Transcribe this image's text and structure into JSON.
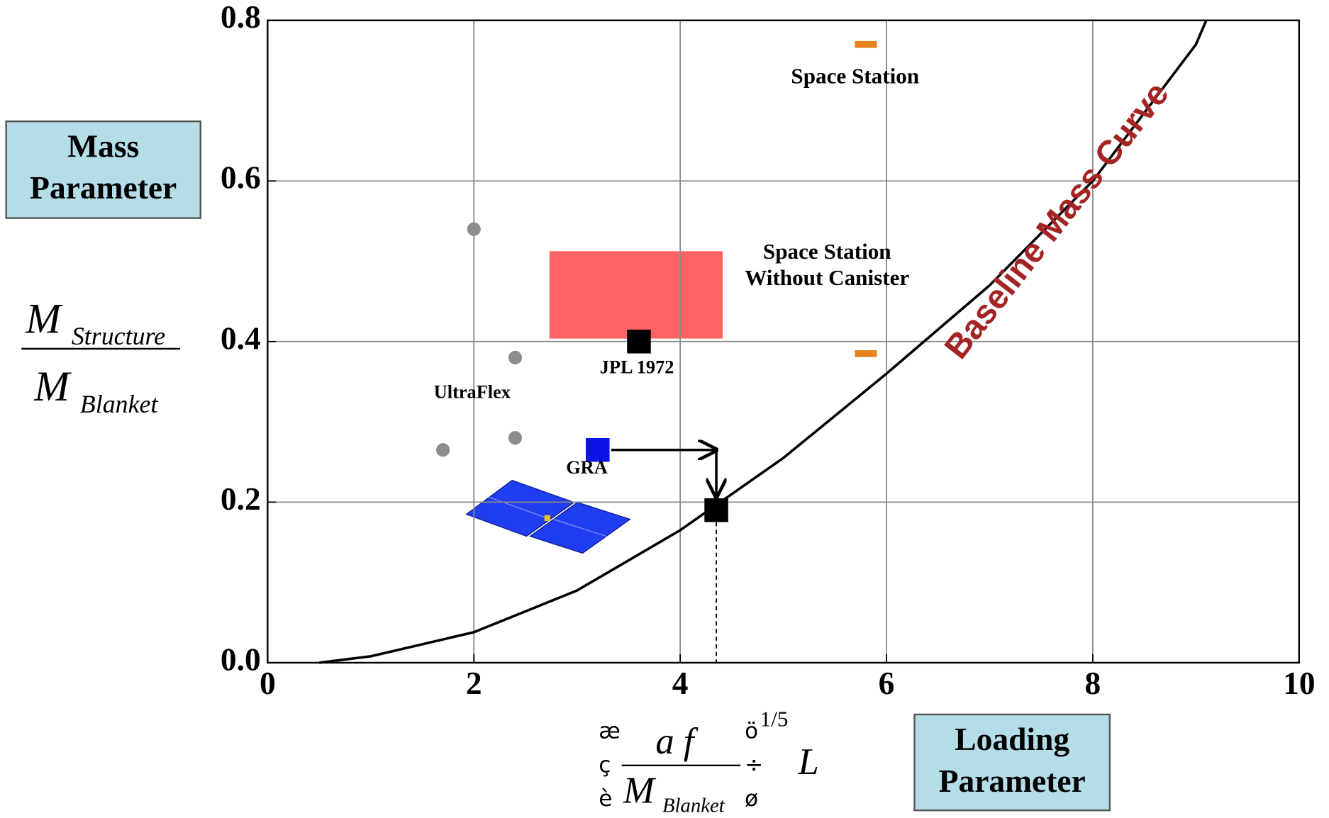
{
  "chart_data": {
    "type": "scatter",
    "x_label": "Loading Parameter",
    "y_label": "Mass Parameter",
    "y_formula": {
      "numerator": "M",
      "numerator_sub": "Structure",
      "denominator": "M",
      "denominator_sub": "Blanket"
    },
    "x_formula": {
      "left_bracket": [
        "æ",
        "ç",
        "è"
      ],
      "numerator": "a f",
      "denominator": "M",
      "denominator_sub": "Blanket",
      "right_bracket": [
        "ö",
        "÷",
        "ø"
      ],
      "exponent": "1/5",
      "suffix": "L"
    },
    "xlim": [
      0,
      10
    ],
    "ylim": [
      0,
      0.8
    ],
    "xticks": [
      0,
      2,
      4,
      6,
      8,
      10
    ],
    "yticks": [
      {
        "value": 0,
        "label": "0.0"
      },
      0.2,
      0.4,
      0.6,
      0.8
    ],
    "grid": true,
    "series": [
      {
        "name": "Baseline Mass Curve",
        "type": "line",
        "color": "#a42424",
        "x": [
          0.5,
          1,
          2,
          3,
          4,
          5,
          6,
          7,
          8,
          9,
          9.1
        ],
        "values": [
          0,
          0.008,
          0.038,
          0.09,
          0.165,
          0.255,
          0.36,
          0.47,
          0.6,
          0.77,
          0.8
        ]
      },
      {
        "name": "UltraFlex",
        "marker": "circle",
        "color": "#8c8c8c",
        "x": [
          2.0,
          2.4,
          2.4,
          1.7
        ],
        "values": [
          0.54,
          0.38,
          0.28,
          0.265
        ]
      },
      {
        "name": "Space Station",
        "marker": "dash",
        "color": "#e8821e",
        "x": [
          5.8
        ],
        "values": [
          0.77
        ]
      },
      {
        "name": "Space Station Without Canister",
        "marker": "dash",
        "color": "#e8821e",
        "x": [
          5.8
        ],
        "values": [
          0.385
        ]
      },
      {
        "name": "JPL 1972",
        "marker": "square",
        "color": "#000000",
        "x": [
          3.6
        ],
        "values": [
          0.4
        ]
      },
      {
        "name": "GRA",
        "marker": "square",
        "color": "#0a14e6",
        "x": [
          3.2
        ],
        "values": [
          0.265
        ]
      },
      {
        "marker": "square",
        "color": "#000000",
        "x": [
          4.35
        ],
        "values": [
          0.19
        ]
      }
    ]
  }
}
